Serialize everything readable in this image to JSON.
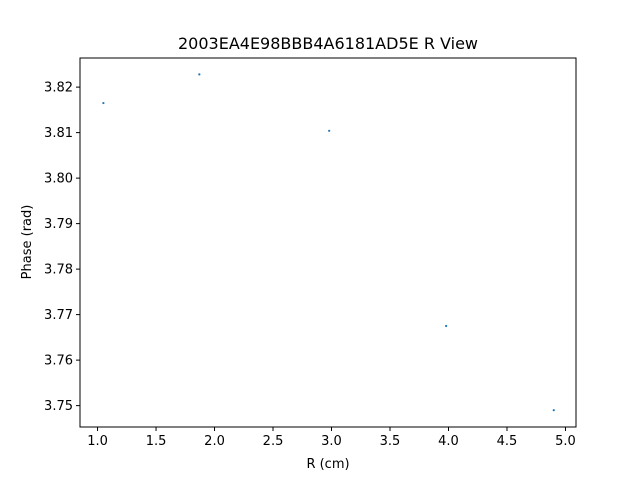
{
  "chart_data": {
    "type": "scatter",
    "title": "2003EA4E98BBB4A6181AD5E R View",
    "xlabel": "R (cm)",
    "ylabel": "Phase (rad)",
    "xlim": [
      0.85,
      5.09
    ],
    "ylim": [
      3.7453,
      3.8264
    ],
    "xticks": [
      1.0,
      1.5,
      2.0,
      2.5,
      3.0,
      3.5,
      4.0,
      4.5,
      5.0
    ],
    "xtick_labels": [
      "1.0",
      "1.5",
      "2.0",
      "2.5",
      "3.0",
      "3.5",
      "4.0",
      "4.5",
      "5.0"
    ],
    "yticks": [
      3.75,
      3.76,
      3.77,
      3.78,
      3.79,
      3.8,
      3.81,
      3.82
    ],
    "ytick_labels": [
      "3.75",
      "3.76",
      "3.77",
      "3.78",
      "3.79",
      "3.80",
      "3.81",
      "3.82"
    ],
    "series": [
      {
        "name": "phase",
        "color": "#1f77b4",
        "x": [
          1.05,
          1.87,
          2.98,
          3.98,
          4.9
        ],
        "y": [
          3.8165,
          3.8228,
          3.8104,
          3.7675,
          3.749
        ]
      }
    ],
    "grid": false,
    "legend": "none"
  }
}
